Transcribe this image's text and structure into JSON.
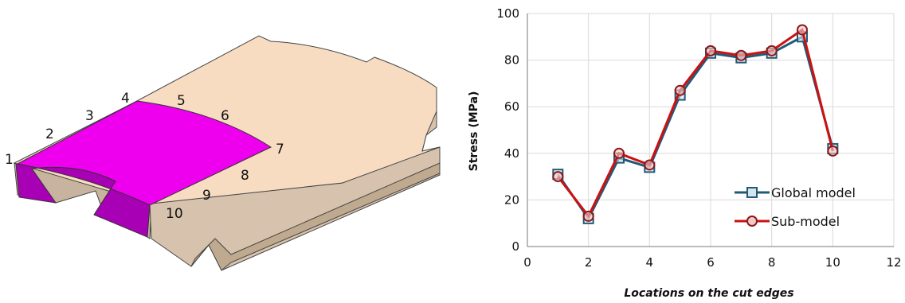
{
  "model": {
    "location_labels": [
      "1",
      "2",
      "3",
      "4",
      "5",
      "6",
      "7",
      "8",
      "9",
      "10"
    ]
  },
  "chart_data": {
    "type": "line",
    "xlabel": "Locations on the cut edges",
    "ylabel": "Stress (MPa)",
    "xlim": [
      0,
      12
    ],
    "ylim": [
      0,
      100
    ],
    "x_ticks": [
      "0",
      "2",
      "4",
      "6",
      "8",
      "10",
      "12"
    ],
    "y_ticks": [
      "0",
      "20",
      "40",
      "60",
      "80",
      "100"
    ],
    "grid": "vertical and horizontal",
    "legend_position": "bottom-right",
    "x": [
      1,
      2,
      3,
      4,
      5,
      6,
      7,
      8,
      9,
      10
    ],
    "series": [
      {
        "name": "Global model",
        "marker": "square",
        "color": "#1f5a7a",
        "values": [
          31,
          12,
          38,
          34,
          65,
          83,
          81,
          83,
          90,
          42
        ]
      },
      {
        "name": "Sub-model",
        "marker": "circle",
        "color": "#cc1111",
        "values": [
          30,
          13,
          40,
          35,
          67,
          84,
          82,
          84,
          93,
          41
        ]
      }
    ]
  }
}
